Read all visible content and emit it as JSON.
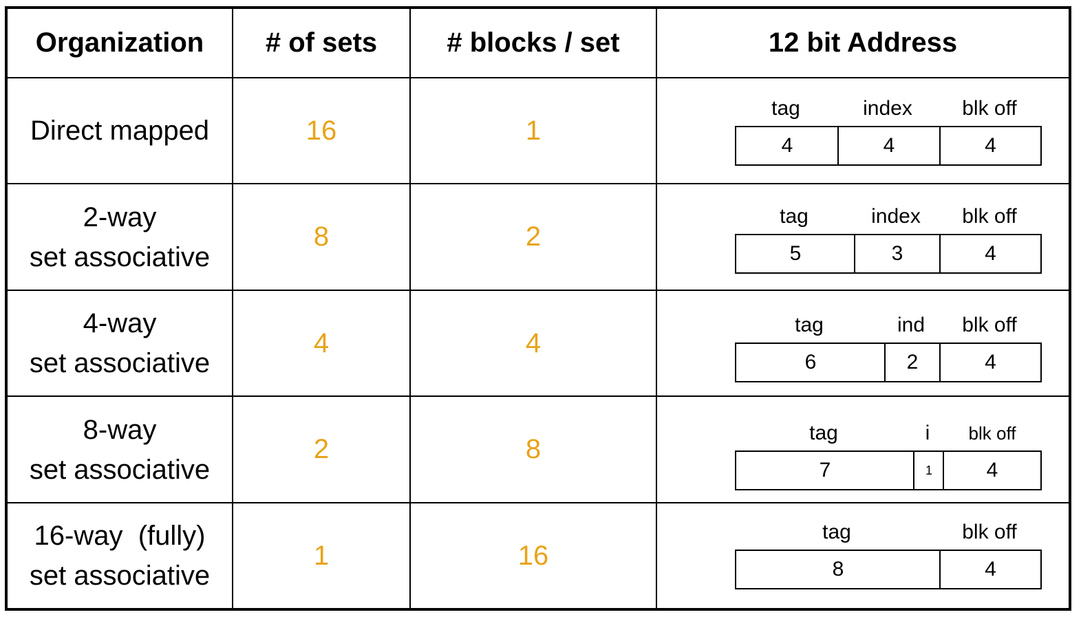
{
  "headers": {
    "organization": "Organization",
    "sets": "# of sets",
    "blocks": "# blocks / set",
    "address": "12 bit Address"
  },
  "rows": [
    {
      "org_line1": "Direct mapped",
      "org_line2": "",
      "sets": "16",
      "blocks": "1",
      "fields": [
        {
          "label": "tag",
          "bits": "4"
        },
        {
          "label": "index",
          "bits": "4"
        },
        {
          "label": "blk off",
          "bits": "4"
        }
      ]
    },
    {
      "org_line1": "2-way",
      "org_line2": "set associative",
      "sets": "8",
      "blocks": "2",
      "fields": [
        {
          "label": "tag",
          "bits": "5"
        },
        {
          "label": "index",
          "bits": "3"
        },
        {
          "label": "blk off",
          "bits": "4"
        }
      ]
    },
    {
      "org_line1": "4-way",
      "org_line2": "set associative",
      "sets": "4",
      "blocks": "4",
      "fields": [
        {
          "label": "tag",
          "bits": "6"
        },
        {
          "label": "ind",
          "bits": "2"
        },
        {
          "label": "blk off",
          "bits": "4"
        }
      ]
    },
    {
      "org_line1": "8-way",
      "org_line2": "set associative",
      "sets": "2",
      "blocks": "8",
      "fields": [
        {
          "label": "tag",
          "bits": "7"
        },
        {
          "label": "i",
          "bits": "1"
        },
        {
          "label": "blk off",
          "bits": "4"
        }
      ]
    },
    {
      "org_line1": "16-way  (fully)",
      "org_line2": "set associative",
      "sets": "1",
      "blocks": "16",
      "fields": [
        {
          "label": "tag",
          "bits": "8"
        },
        {
          "label": "blk off",
          "bits": "4"
        }
      ]
    }
  ],
  "colors": {
    "value_color": "#E8A318",
    "line_color": "#000000"
  }
}
